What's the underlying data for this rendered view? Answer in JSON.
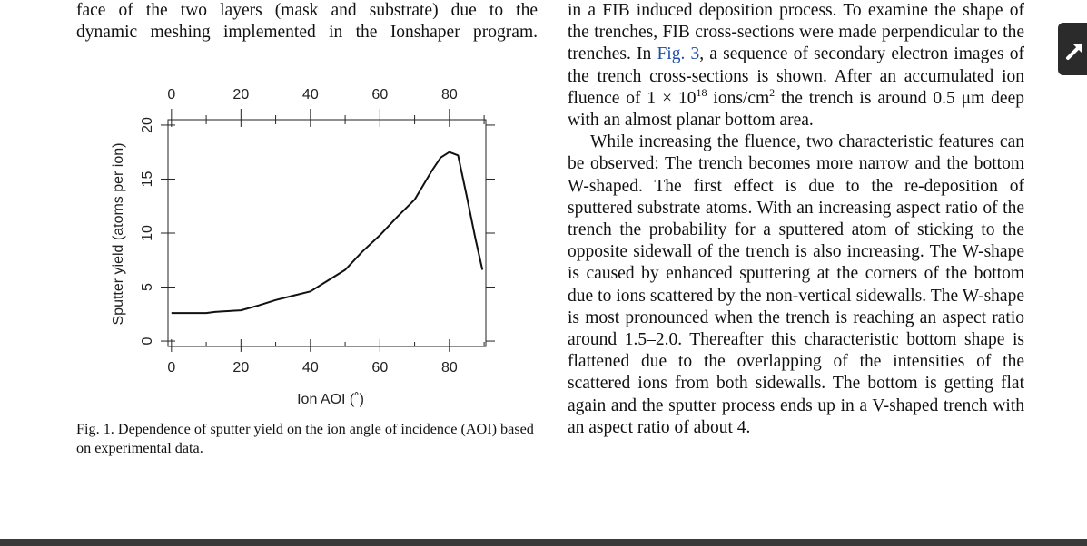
{
  "left_column": {
    "line1": "face of the two layers (mask and substrate) due to the",
    "line2": "dynamic meshing implemented in the Ionshaper program."
  },
  "right_column": {
    "p1_part1": "in a FIB induced deposition process. To examine the shape of the trenches, FIB cross-sections were made perpendicular to the trenches. In ",
    "p1_link": "Fig. 3",
    "p1_part2": ", a sequence of secondary electron images of the trench cross-sections is shown. After an accumulated ion fluence of 1 × 10",
    "p1_sup1": "18",
    "p1_part3": " ions/cm",
    "p1_sup2": "2",
    "p1_part4": " the trench is around 0.5 μm deep with an almost planar bottom area.",
    "p2": "While increasing the fluence, two characteristic features can be observed: The trench becomes more narrow and the bottom W-shaped. The first effect is due to the re-deposition of sputtered substrate atoms. With an increasing aspect ratio of the trench the probability for a sputtered atom of sticking to the opposite sidewall of the trench is also increasing. The W-shape is caused by enhanced sputtering at the corners of the bottom due to ions scattered by the non-vertical sidewalls. The W-shape is most pronounced when the trench is reaching an aspect ratio around 1.5–2.0. Thereafter this characteristic bottom shape is flattened due to the overlapping of the intensities of the scattered ions from both sidewalls. The bottom is getting flat again and the sputter process ends up in a V-shaped trench with an aspect ratio of about 4."
  },
  "caption": "Fig. 1. Dependence of sputter yield on the ion angle of incidence (AOI) based on experimental data.",
  "side_button": {
    "icon": "expand-arrow-icon"
  },
  "chart_data": {
    "type": "line",
    "xlabel": "Ion AOI (˚)",
    "ylabel": "Sputter yield (atoms per ion)",
    "xlim": [
      -1,
      90.5
    ],
    "ylim": [
      -0.5,
      20.5
    ],
    "xticks": [
      0,
      20,
      40,
      60,
      80
    ],
    "yticks": [
      0,
      5,
      10,
      15,
      20
    ],
    "xticks_top": [
      0,
      20,
      40,
      60,
      80
    ],
    "series": [
      {
        "x": [
          0,
          5,
          10,
          12.5,
          15,
          20,
          25,
          30,
          35,
          40,
          45,
          50,
          55,
          60,
          65,
          70,
          75,
          77.5,
          80,
          82.5,
          85,
          87.5,
          89.5
        ],
        "y": [
          2.6,
          2.6,
          2.6,
          2.7,
          2.75,
          2.85,
          3.3,
          3.8,
          4.2,
          4.6,
          5.6,
          6.6,
          8.3,
          9.8,
          11.5,
          13.1,
          15.8,
          17.0,
          17.5,
          17.2,
          13.4,
          9.5,
          6.6
        ]
      }
    ]
  }
}
